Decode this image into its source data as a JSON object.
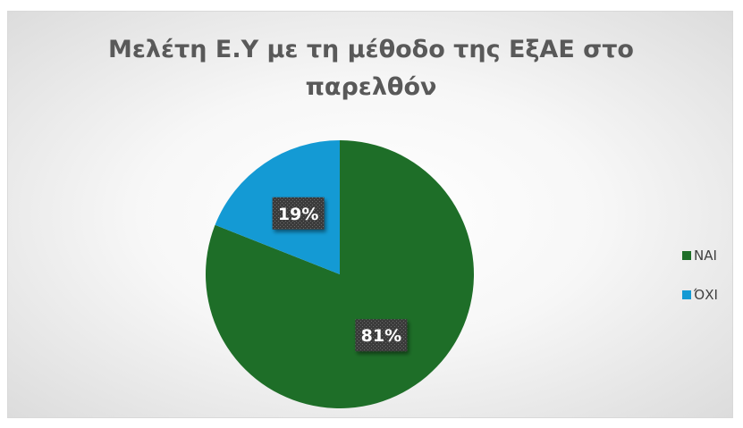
{
  "chart_data": {
    "type": "pie",
    "title": "Μελέτη Ε.Υ με τη μέθοδο της ΕξΑΕ στο παρελθόν",
    "title_lines": [
      "Μελέτη Ε.Υ με τη μέθοδο της ΕξΑΕ στο",
      "παρελθόν"
    ],
    "categories": [
      "ΝΑΙ",
      "ΌΧΙ"
    ],
    "values": [
      81,
      19
    ],
    "labels": [
      "81%",
      "19%"
    ],
    "colors": [
      "#1e6e28",
      "#149ad4"
    ],
    "legend_position": "right"
  }
}
